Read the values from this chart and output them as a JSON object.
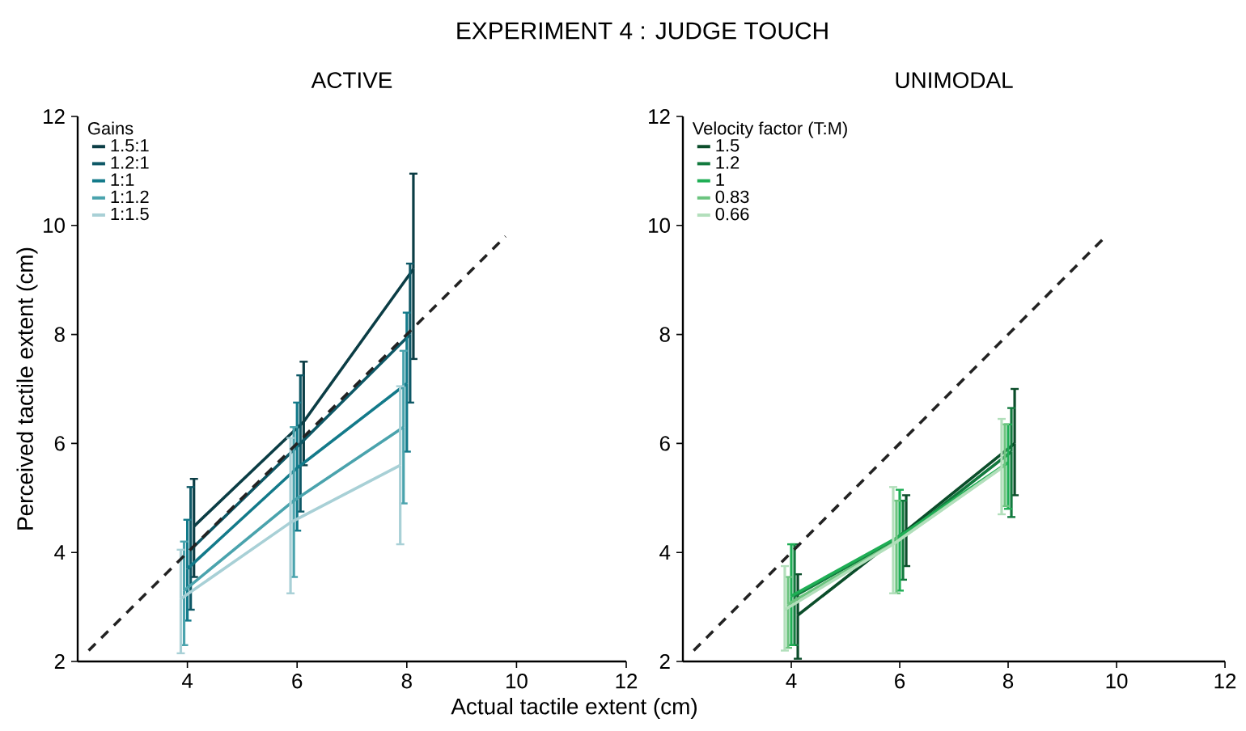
{
  "chart_data": [
    {
      "type": "line",
      "title": "EXPERIMENT 4 : JUDGE TOUCH",
      "subtitle": "ACTIVE",
      "xlabel": "Actual tactile extent (cm)",
      "ylabel": "Perceived tactile extent (cm)",
      "legend_title": "Gains",
      "legend": "top left",
      "xlim": [
        2,
        12
      ],
      "ylim": [
        2,
        12
      ],
      "xticks": [
        4,
        6,
        8,
        10,
        12
      ],
      "yticks": [
        2,
        4,
        6,
        8,
        10,
        12
      ],
      "series": [
        {
          "name": "1.5:1",
          "color": "#0b3d45",
          "x": [
            4.12,
            6.12,
            8.12
          ],
          "values": [
            4.48,
            6.4,
            9.2
          ],
          "errors": [
            [
              3.55,
              5.35
            ],
            [
              5.6,
              7.5
            ],
            [
              7.55,
              10.95
            ]
          ]
        },
        {
          "name": "1.2:1",
          "color": "#0e5866",
          "x": [
            4.06,
            6.06,
            8.06
          ],
          "values": [
            4.05,
            6.0,
            8.0
          ],
          "errors": [
            [
              2.95,
              5.2
            ],
            [
              4.75,
              7.25
            ],
            [
              6.75,
              9.3
            ]
          ]
        },
        {
          "name": "1:1",
          "color": "#137a8a",
          "x": [
            4.0,
            6.0,
            8.0
          ],
          "values": [
            3.7,
            5.55,
            7.1
          ],
          "errors": [
            [
              2.75,
              4.6
            ],
            [
              4.4,
              6.75
            ],
            [
              5.85,
              8.4
            ]
          ]
        },
        {
          "name": "1:1.2",
          "color": "#4aa3ad",
          "x": [
            3.94,
            5.94,
            7.94
          ],
          "values": [
            3.3,
            4.95,
            6.3
          ],
          "errors": [
            [
              2.3,
              4.2
            ],
            [
              3.55,
              6.3
            ],
            [
              4.9,
              7.7
            ]
          ]
        },
        {
          "name": "1:1.5",
          "color": "#a8d0d6",
          "x": [
            3.88,
            5.88,
            7.88
          ],
          "values": [
            3.15,
            4.55,
            5.6
          ],
          "errors": [
            [
              2.15,
              4.05
            ],
            [
              3.25,
              6.1
            ],
            [
              4.15,
              7.05
            ]
          ]
        },
        {
          "color": "#222222",
          "line_style": "dashed",
          "x": [
            2.2,
            9.8
          ],
          "values": [
            2.2,
            9.8
          ]
        }
      ]
    },
    {
      "type": "line",
      "subtitle": "UNIMODAL",
      "legend_title": "Velocity factor (T:M)",
      "legend": "top left",
      "xlim": [
        2,
        12
      ],
      "ylim": [
        2,
        12
      ],
      "xticks": [
        4,
        6,
        8,
        10,
        12
      ],
      "yticks": [
        2,
        4,
        6,
        8,
        10,
        12
      ],
      "series": [
        {
          "name": "1.5",
          "color": "#0b4d2a",
          "x": [
            4.12,
            6.12,
            8.12
          ],
          "values": [
            2.85,
            4.4,
            6.0
          ],
          "errors": [
            [
              2.05,
              3.6
            ],
            [
              3.75,
              5.05
            ],
            [
              5.05,
              7.0
            ]
          ]
        },
        {
          "name": "1.2",
          "color": "#127a3e",
          "x": [
            4.06,
            6.06,
            8.06
          ],
          "values": [
            3.2,
            4.3,
            5.85
          ],
          "errors": [
            [
              2.3,
              4.15
            ],
            [
              3.5,
              4.95
            ],
            [
              4.65,
              6.65
            ]
          ]
        },
        {
          "name": "1",
          "color": "#1fae55",
          "x": [
            4.0,
            6.0,
            8.0
          ],
          "values": [
            3.2,
            4.3,
            5.65
          ],
          "errors": [
            [
              2.3,
              4.15
            ],
            [
              3.3,
              5.15
            ],
            [
              4.8,
              6.35
            ]
          ]
        },
        {
          "name": "0.83",
          "color": "#6cc47f",
          "x": [
            3.94,
            5.94,
            7.94
          ],
          "values": [
            3.05,
            4.2,
            5.6
          ],
          "errors": [
            [
              2.25,
              3.55
            ],
            [
              3.25,
              4.95
            ],
            [
              4.85,
              6.35
            ]
          ]
        },
        {
          "name": "0.66",
          "color": "#b2dfbb",
          "x": [
            3.88,
            5.88,
            7.88
          ],
          "values": [
            2.95,
            4.15,
            5.55
          ],
          "errors": [
            [
              2.2,
              3.75
            ],
            [
              3.25,
              5.2
            ],
            [
              4.7,
              6.45
            ]
          ]
        },
        {
          "color": "#222222",
          "line_style": "dashed",
          "x": [
            2.2,
            9.8
          ],
          "values": [
            2.2,
            9.8
          ]
        }
      ]
    }
  ]
}
